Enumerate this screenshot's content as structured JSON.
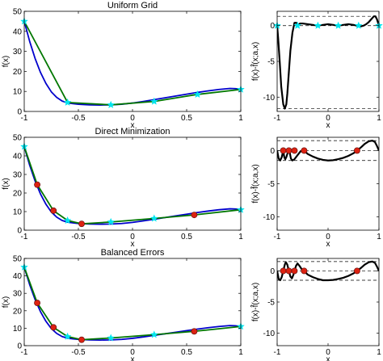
{
  "chart_data": [
    {
      "type": "line",
      "title": "Uniform Grid",
      "xlabel": "x",
      "ylabel": "f(x)",
      "xlim": [
        -1,
        1
      ],
      "ylim": [
        0,
        50
      ],
      "xticks": [
        -1,
        -0.5,
        0,
        0.5,
        1
      ],
      "yticks": [
        0,
        10,
        20,
        30,
        40,
        50
      ],
      "xtick_labels": [
        "-1",
        "-0.5",
        "0",
        "0.5",
        "1"
      ],
      "ytick_labels": [
        "0",
        "10",
        "20",
        "30",
        "40",
        "50"
      ],
      "series": [
        {
          "color": "#0000cc",
          "x": [
            -1,
            -0.95,
            -0.9,
            -0.85,
            -0.8,
            -0.75,
            -0.7,
            -0.65,
            -0.6,
            -0.55,
            -0.5,
            -0.4,
            -0.3,
            -0.2,
            -0.1,
            0,
            0.1,
            0.2,
            0.3,
            0.4,
            0.5,
            0.6,
            0.7,
            0.8,
            0.9,
            0.95,
            1
          ],
          "y": [
            45,
            35,
            26.5,
            19.5,
            14,
            9.8,
            7,
            5.2,
            4.3,
            3.9,
            3.6,
            3.3,
            3.2,
            3.3,
            3.6,
            4.2,
            5,
            5.9,
            6.8,
            7.7,
            8.6,
            9.5,
            10.3,
            11,
            11.5,
            11.4,
            11
          ]
        },
        {
          "color": "#007700",
          "x": [
            -1,
            -0.6,
            -0.2,
            0.2,
            0.6,
            1
          ],
          "y": [
            45,
            4.5,
            3.3,
            5,
            8.5,
            11
          ]
        }
      ],
      "markers": [
        {
          "shape": "star",
          "color": "#00e5ee",
          "x": [
            -1,
            -0.6,
            -0.2,
            0.2,
            0.6,
            1
          ],
          "y": [
            45,
            4.5,
            3.3,
            5,
            8.5,
            11
          ]
        }
      ]
    },
    {
      "type": "line",
      "xlabel": "x",
      "ylabel": "f(x)-f̂(x;a,x)",
      "xlim": [
        -1,
        1
      ],
      "ylim": [
        -12,
        2
      ],
      "xticks": [
        -1,
        0,
        1
      ],
      "yticks": [
        -10,
        -5,
        0
      ],
      "xtick_labels": [
        "-1",
        "0",
        "1"
      ],
      "ytick_labels": [
        "-10",
        "-5",
        "0"
      ],
      "hlines": [
        {
          "y": 1.3,
          "style": "dashed"
        },
        {
          "y": 0,
          "style": "dashed"
        },
        {
          "y": -11.6,
          "style": "dashed"
        }
      ],
      "series": [
        {
          "color": "#000000",
          "x": [
            -1,
            -0.98,
            -0.95,
            -0.92,
            -0.88,
            -0.85,
            -0.82,
            -0.8,
            -0.77,
            -0.74,
            -0.7,
            -0.66,
            -0.62,
            -0.6,
            -0.55,
            -0.5,
            -0.4,
            -0.3,
            -0.2,
            -0.1,
            0,
            0.1,
            0.2,
            0.3,
            0.4,
            0.5,
            0.55,
            0.6,
            0.65,
            0.7,
            0.75,
            0.8,
            0.85,
            0.9,
            0.93,
            0.96,
            1
          ],
          "y": [
            0,
            -1.8,
            -5,
            -8.5,
            -11,
            -11.6,
            -11,
            -9.5,
            -6.5,
            -3.5,
            -1,
            0.4,
            0.4,
            0,
            0.3,
            0.3,
            0.2,
            0.1,
            0,
            0.1,
            0.2,
            0.1,
            0,
            0.1,
            0.2,
            0.1,
            0.02,
            0,
            -0.1,
            0,
            0.2,
            0.5,
            0.9,
            1.3,
            1.3,
            0.9,
            0
          ]
        }
      ],
      "markers": [
        {
          "shape": "star",
          "color": "#00e5ee",
          "x": [
            -1,
            -0.6,
            -0.2,
            0.2,
            0.6,
            1
          ],
          "y": [
            0,
            0,
            0,
            0,
            0,
            0
          ]
        }
      ]
    },
    {
      "type": "line",
      "title": "Direct Minimization",
      "xlabel": "x",
      "ylabel": "f(x)",
      "xlim": [
        -1,
        1
      ],
      "ylim": [
        0,
        50
      ],
      "xticks": [
        -1,
        -0.5,
        0,
        0.5,
        1
      ],
      "yticks": [
        0,
        10,
        20,
        30,
        40,
        50
      ],
      "xtick_labels": [
        "-1",
        "-0.5",
        "0",
        "0.5",
        "1"
      ],
      "ytick_labels": [
        "0",
        "10",
        "20",
        "30",
        "40",
        "50"
      ],
      "series": [
        {
          "color": "#0000cc",
          "x": [
            -1,
            -0.95,
            -0.9,
            -0.85,
            -0.8,
            -0.75,
            -0.7,
            -0.65,
            -0.6,
            -0.55,
            -0.5,
            -0.4,
            -0.3,
            -0.2,
            -0.1,
            0,
            0.1,
            0.2,
            0.3,
            0.4,
            0.5,
            0.6,
            0.7,
            0.8,
            0.9,
            0.95,
            1
          ],
          "y": [
            45,
            35,
            26.5,
            19.5,
            14,
            9.8,
            7,
            5.2,
            4.3,
            3.9,
            3.6,
            3.3,
            3.2,
            3.3,
            3.6,
            4.2,
            5,
            5.9,
            6.8,
            7.7,
            8.6,
            9.5,
            10.3,
            11,
            11.5,
            11.4,
            11
          ]
        },
        {
          "color": "#007700",
          "x": [
            -1,
            -0.88,
            -0.73,
            -0.6,
            -0.47,
            -0.2,
            0.2,
            0.57,
            1
          ],
          "y": [
            45,
            24.5,
            10.5,
            5.2,
            3.4,
            4.4,
            6.3,
            8.2,
            11
          ]
        }
      ],
      "markers": [
        {
          "shape": "star",
          "color": "#00e5ee",
          "x": [
            -1,
            -0.6,
            -0.2,
            0.2,
            1
          ],
          "y": [
            45,
            5.2,
            4.4,
            6.3,
            11
          ]
        },
        {
          "shape": "circle",
          "color": "#dd2211",
          "x": [
            -0.88,
            -0.73,
            -0.47,
            0.57
          ],
          "y": [
            24.5,
            10.5,
            3.4,
            8.2
          ]
        }
      ]
    },
    {
      "type": "line",
      "xlabel": "x",
      "ylabel": "f(x)-f̂(x;a,x)",
      "xlim": [
        -1,
        1
      ],
      "ylim": [
        -12,
        2
      ],
      "xticks": [
        -1,
        0,
        1
      ],
      "yticks": [
        -10,
        -5,
        0
      ],
      "xtick_labels": [
        "-1",
        "0",
        "1"
      ],
      "ytick_labels": [
        "-10",
        "-5",
        "0"
      ],
      "hlines": [
        {
          "y": 1.5,
          "style": "dashed"
        },
        {
          "y": 0,
          "style": "dashed"
        },
        {
          "y": -1.5,
          "style": "dashed"
        }
      ],
      "series": [
        {
          "color": "#000000",
          "x": [
            -1,
            -0.97,
            -0.94,
            -0.91,
            -0.88,
            -0.86,
            -0.84,
            -0.82,
            -0.8,
            -0.77,
            -0.75,
            -0.73,
            -0.7,
            -0.66,
            -0.62,
            -0.58,
            -0.55,
            -0.5,
            -0.47,
            -0.4,
            -0.3,
            -0.2,
            -0.1,
            0,
            0.1,
            0.2,
            0.3,
            0.4,
            0.5,
            0.57,
            0.65,
            0.72,
            0.8,
            0.87,
            0.92,
            0.96,
            1
          ],
          "y": [
            0,
            -1.2,
            -1.5,
            -1.0,
            0,
            -1.0,
            -1.3,
            -1.0,
            -0.5,
            0,
            -0.4,
            -1.2,
            -1.5,
            -1.3,
            -0.9,
            -0.5,
            -0.2,
            0,
            0,
            -0.5,
            -0.9,
            -1.2,
            -1.4,
            -1.5,
            -1.45,
            -1.3,
            -1.1,
            -0.8,
            -0.4,
            0,
            0.5,
            1.0,
            1.4,
            1.5,
            1.3,
            0.7,
            0
          ]
        }
      ],
      "markers": [
        {
          "shape": "circle",
          "color": "#dd2211",
          "x": [
            -0.88,
            -0.77,
            -0.66,
            -0.47,
            0.57
          ],
          "y": [
            0,
            0,
            0,
            0,
            0
          ]
        }
      ]
    },
    {
      "type": "line",
      "title": "Balanced Errors",
      "xlabel": "x",
      "ylabel": "f(x)",
      "xlim": [
        -1,
        1
      ],
      "ylim": [
        0,
        50
      ],
      "xticks": [
        -1,
        -0.5,
        0,
        0.5,
        1
      ],
      "yticks": [
        0,
        10,
        20,
        30,
        40,
        50
      ],
      "xtick_labels": [
        "-1",
        "-0.5",
        "0",
        "0.5",
        "1"
      ],
      "ytick_labels": [
        "0",
        "10",
        "20",
        "30",
        "40",
        "50"
      ],
      "series": [
        {
          "color": "#0000cc",
          "x": [
            -1,
            -0.95,
            -0.9,
            -0.85,
            -0.8,
            -0.75,
            -0.7,
            -0.65,
            -0.6,
            -0.55,
            -0.5,
            -0.4,
            -0.3,
            -0.2,
            -0.1,
            0,
            0.1,
            0.2,
            0.3,
            0.4,
            0.5,
            0.6,
            0.7,
            0.8,
            0.9,
            0.95,
            1
          ],
          "y": [
            45,
            35,
            26.5,
            19.5,
            14,
            9.8,
            7,
            5.2,
            4.3,
            3.9,
            3.6,
            3.3,
            3.2,
            3.3,
            3.6,
            4.2,
            5,
            5.9,
            6.8,
            7.7,
            8.6,
            9.5,
            10.3,
            11,
            11.5,
            11.4,
            11
          ]
        },
        {
          "color": "#007700",
          "x": [
            -1,
            -0.88,
            -0.73,
            -0.6,
            -0.47,
            -0.2,
            0.2,
            0.57,
            1
          ],
          "y": [
            45,
            24.5,
            10.5,
            5.2,
            3.4,
            4.4,
            6.3,
            8.2,
            11
          ]
        }
      ],
      "markers": [
        {
          "shape": "star",
          "color": "#00e5ee",
          "x": [
            -1,
            -0.6,
            -0.2,
            0.2,
            1
          ],
          "y": [
            45,
            5.2,
            4.4,
            6.3,
            11
          ]
        },
        {
          "shape": "circle",
          "color": "#dd2211",
          "x": [
            -0.88,
            -0.73,
            -0.47,
            0.57
          ],
          "y": [
            24.5,
            10.5,
            3.4,
            8.2
          ]
        }
      ]
    },
    {
      "type": "line",
      "xlabel": "x",
      "ylabel": "f(x)-f̂(x;a,x)",
      "xlim": [
        -1,
        1
      ],
      "ylim": [
        -12,
        2
      ],
      "xticks": [
        -1,
        0,
        1
      ],
      "yticks": [
        -10,
        -5,
        0
      ],
      "xtick_labels": [
        "-1",
        "0",
        "1"
      ],
      "ytick_labels": [
        "-10",
        "-5",
        "0"
      ],
      "hlines": [
        {
          "y": 1.5,
          "style": "dashed"
        },
        {
          "y": 0,
          "style": "dashed"
        },
        {
          "y": -1.5,
          "style": "dashed"
        }
      ],
      "series": [
        {
          "color": "#000000",
          "x": [
            -1,
            -0.97,
            -0.94,
            -0.91,
            -0.88,
            -0.85,
            -0.83,
            -0.8,
            -0.77,
            -0.74,
            -0.71,
            -0.68,
            -0.66,
            -0.63,
            -0.6,
            -0.56,
            -0.52,
            -0.47,
            -0.4,
            -0.3,
            -0.2,
            -0.1,
            0,
            0.1,
            0.2,
            0.3,
            0.4,
            0.5,
            0.57,
            0.65,
            0.72,
            0.8,
            0.87,
            0.92,
            0.96,
            1
          ],
          "y": [
            0,
            -1.3,
            -1.5,
            -1.0,
            0,
            1.0,
            1.4,
            1.0,
            0,
            -0.9,
            -1.2,
            -0.6,
            0,
            0.8,
            1.2,
            0.8,
            0.3,
            0,
            -0.6,
            -1.0,
            -1.3,
            -1.5,
            -1.5,
            -1.45,
            -1.3,
            -1.1,
            -0.8,
            -0.4,
            0,
            0.5,
            1.0,
            1.4,
            1.5,
            1.3,
            0.7,
            0
          ]
        }
      ],
      "markers": [
        {
          "shape": "circle",
          "color": "#dd2211",
          "x": [
            -0.88,
            -0.77,
            -0.66,
            -0.47,
            0.57
          ],
          "y": [
            0,
            0,
            0,
            0,
            0
          ]
        }
      ]
    }
  ]
}
